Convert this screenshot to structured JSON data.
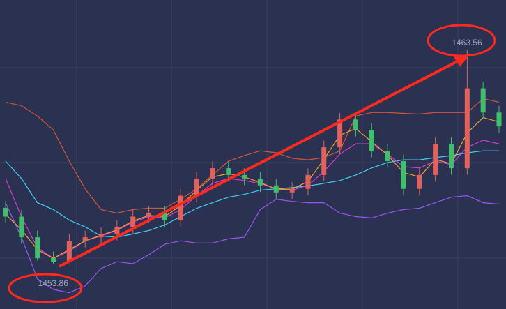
{
  "chart_data": {
    "type": "candlestick",
    "up_color": "#e2615d",
    "down_color": "#3fbf6a",
    "open": [
      1456.4,
      1456.0,
      1455.06,
      1454.11,
      1453.95,
      1454.9,
      1455.06,
      1455.21,
      1455.53,
      1456.0,
      1456.16,
      1455.84,
      1456.95,
      1457.73,
      1458.2,
      1457.89,
      1457.73,
      1457.42,
      1457.1,
      1457.26,
      1457.89,
      1459.15,
      1460.41,
      1459.94,
      1458.99,
      1458.52,
      1457.26,
      1457.89,
      1459.31,
      1458.2,
      1461.83,
      1460.73
    ],
    "high": [
      1456.7,
      1456.3,
      1455.36,
      1454.41,
      1455.2,
      1455.36,
      1455.51,
      1455.83,
      1456.3,
      1456.46,
      1456.46,
      1457.25,
      1458.03,
      1458.5,
      1458.5,
      1458.19,
      1458.03,
      1457.72,
      1457.56,
      1458.19,
      1459.45,
      1460.71,
      1460.71,
      1460.24,
      1459.29,
      1458.82,
      1458.19,
      1459.61,
      1459.61,
      1463.56,
      1462.13,
      1461.03
    ],
    "low": [
      1455.7,
      1454.76,
      1454.0,
      1453.86,
      1453.92,
      1454.6,
      1454.76,
      1454.91,
      1455.23,
      1455.7,
      1455.54,
      1455.54,
      1456.65,
      1457.43,
      1457.59,
      1457.43,
      1457.12,
      1456.8,
      1456.8,
      1456.96,
      1457.59,
      1458.85,
      1459.64,
      1458.69,
      1458.22,
      1456.96,
      1456.96,
      1457.59,
      1457.9,
      1457.9,
      1460.43,
      1459.8
    ],
    "close": [
      1456.0,
      1455.06,
      1454.11,
      1453.95,
      1454.9,
      1455.06,
      1455.21,
      1455.53,
      1456.0,
      1456.16,
      1455.84,
      1456.95,
      1457.73,
      1458.2,
      1457.89,
      1457.73,
      1457.42,
      1457.1,
      1457.26,
      1457.89,
      1459.15,
      1460.41,
      1459.94,
      1458.99,
      1458.52,
      1457.26,
      1457.89,
      1459.31,
      1458.2,
      1461.83,
      1460.73,
      1460.1
    ],
    "lines": [
      {
        "color": "#d0573a",
        "values": [
          1461.2,
          1461.04,
          1460.57,
          1459.94,
          1458.52,
          1457.26,
          1456.32,
          1456.16,
          1456.32,
          1456.38,
          1456.38,
          1456.79,
          1457.26,
          1457.89,
          1458.52,
          1458.77,
          1458.99,
          1458.9,
          1458.65,
          1458.58,
          1458.68,
          1458.99,
          1460.57,
          1460.73,
          1460.73,
          1460.69,
          1460.66,
          1460.73,
          1460.73,
          1460.73,
          1461.36,
          1461.2
        ]
      },
      {
        "color": "#9a55ee",
        "values": [
          1456.63,
          1455.06,
          1453.17,
          1452.69,
          1452.54,
          1452.85,
          1453.64,
          1453.95,
          1453.86,
          1454.27,
          1454.74,
          1454.9,
          1454.8,
          1454.8,
          1454.99,
          1455.06,
          1456.32,
          1456.79,
          1456.69,
          1456.63,
          1456.63,
          1456.16,
          1456.0,
          1455.94,
          1456.16,
          1456.32,
          1456.38,
          1456.63,
          1456.88,
          1456.95,
          1456.63,
          1456.57
        ]
      },
      {
        "color": "#3fd0f0",
        "values": [
          1458.52,
          1457.73,
          1456.63,
          1456.32,
          1455.84,
          1455.53,
          1455.12,
          1455.06,
          1455.21,
          1455.37,
          1455.62,
          1456.0,
          1456.38,
          1456.63,
          1456.88,
          1457.01,
          1457.2,
          1457.26,
          1457.32,
          1457.39,
          1457.51,
          1457.64,
          1457.89,
          1458.21,
          1458.46,
          1458.58,
          1458.58,
          1458.68,
          1458.77,
          1458.9,
          1458.99,
          1458.99
        ]
      },
      {
        "color": "#d63bd6",
        "values": [
          1457.73,
          1456.0,
          1454.58,
          1454.11,
          1454.43,
          1454.9,
          1455.12,
          1455.37,
          1455.75,
          1456.0,
          1455.94,
          1456.32,
          1456.95,
          1457.51,
          1457.73,
          1457.64,
          1457.51,
          1457.26,
          1457.2,
          1457.42,
          1458.05,
          1458.84,
          1459.31,
          1459.31,
          1458.84,
          1458.27,
          1458.21,
          1458.52,
          1458.36,
          1459.15,
          1459.47,
          1459.31
        ]
      },
      {
        "color": "#f0a030",
        "values": [
          1456.1,
          1455.4,
          1454.5,
          1454.1,
          1454.5,
          1454.9,
          1455.15,
          1455.4,
          1455.8,
          1456.05,
          1456.0,
          1456.5,
          1457.2,
          1457.8,
          1457.95,
          1457.8,
          1457.55,
          1457.25,
          1457.25,
          1457.6,
          1458.6,
          1459.7,
          1460.0,
          1459.4,
          1458.8,
          1458.0,
          1457.8,
          1458.6,
          1458.4,
          1459.8,
          1460.5,
          1460.3
        ]
      }
    ],
    "max_label": "1463.56",
    "min_label": "1453.86"
  }
}
